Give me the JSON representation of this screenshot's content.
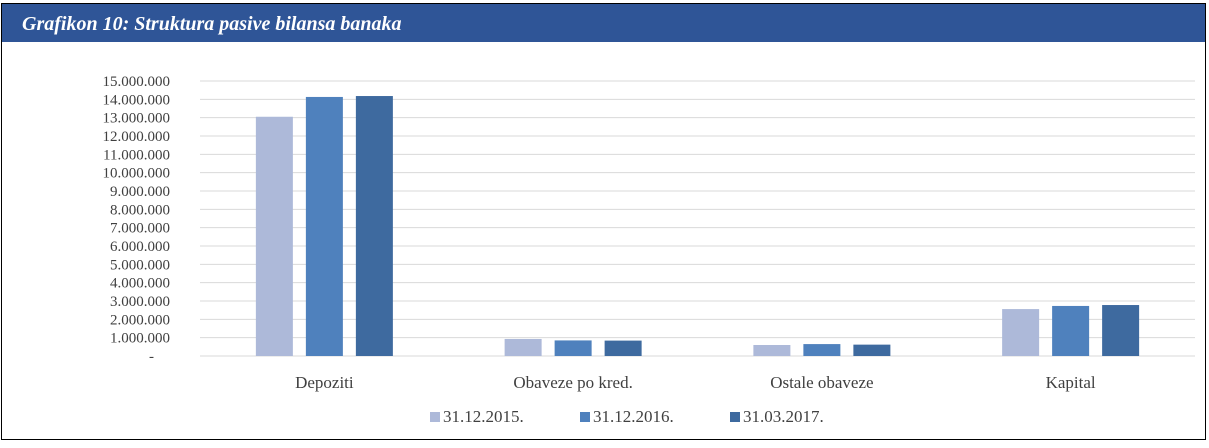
{
  "chart_data": {
    "type": "bar",
    "title": "Grafikon 10: Struktura pasive bilansa banaka",
    "categories": [
      "Depoziti",
      "Obaveze po kred.",
      "Ostale obaveze",
      "Kapital"
    ],
    "series": [
      {
        "name": "31.12.2015.",
        "color": "#adb9d9",
        "values": [
          13050000,
          930000,
          600000,
          2560000
        ]
      },
      {
        "name": "31.12.2016.",
        "color": "#4f81bd",
        "values": [
          14130000,
          850000,
          650000,
          2730000
        ]
      },
      {
        "name": "31.03.2017.",
        "color": "#3e6a9f",
        "values": [
          14180000,
          840000,
          620000,
          2780000
        ]
      }
    ],
    "ylim": [
      0,
      15000000
    ],
    "yticks": [
      {
        "value": 0,
        "label": "-"
      },
      {
        "value": 1000000,
        "label": "1.000.000"
      },
      {
        "value": 2000000,
        "label": "2.000.000"
      },
      {
        "value": 3000000,
        "label": "3.000.000"
      },
      {
        "value": 4000000,
        "label": "4.000.000"
      },
      {
        "value": 5000000,
        "label": "5.000.000"
      },
      {
        "value": 6000000,
        "label": "6.000.000"
      },
      {
        "value": 7000000,
        "label": "7.000.000"
      },
      {
        "value": 8000000,
        "label": "8.000.000"
      },
      {
        "value": 9000000,
        "label": "9.000.000"
      },
      {
        "value": 10000000,
        "label": "10.000.000"
      },
      {
        "value": 11000000,
        "label": "11.000.000"
      },
      {
        "value": 12000000,
        "label": "12.000.000"
      },
      {
        "value": 13000000,
        "label": "13.000.000"
      },
      {
        "value": 14000000,
        "label": "14.000.000"
      },
      {
        "value": 15000000,
        "label": "15.000.000"
      }
    ],
    "grid": true,
    "legend": "bottom"
  }
}
